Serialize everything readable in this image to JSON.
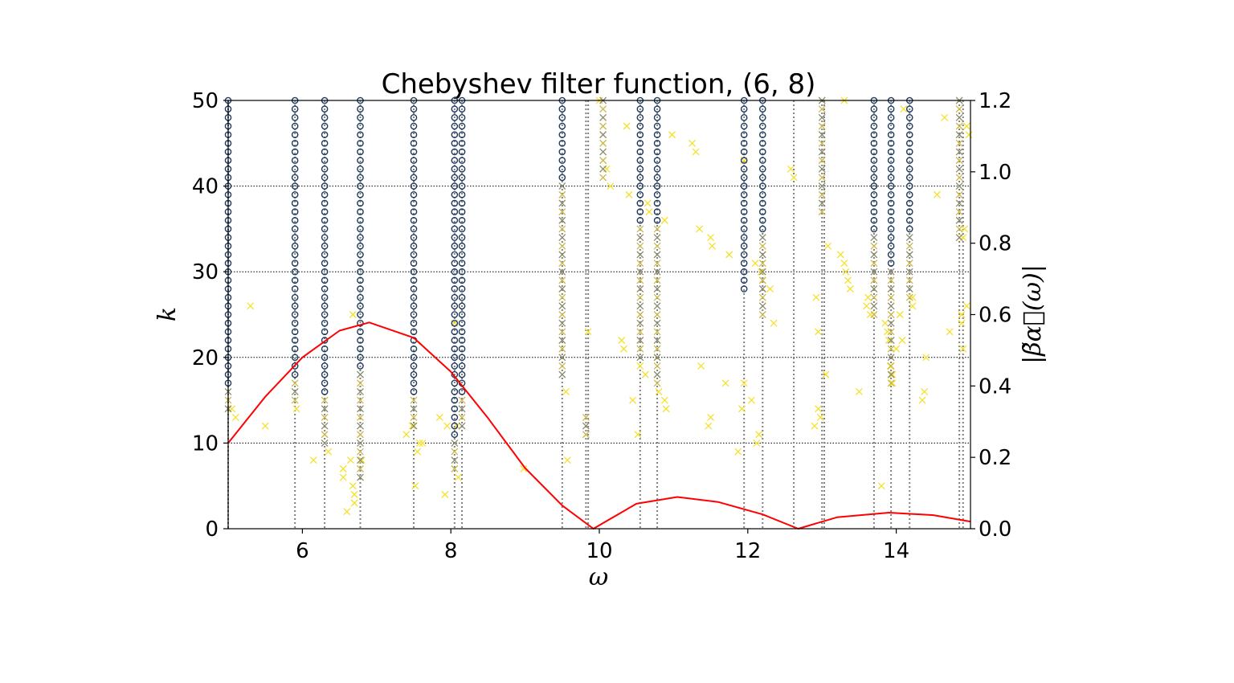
{
  "chart_data": {
    "type": "scatter",
    "title": "Chebyshev filter function, (6, 8)",
    "xlabel": "ω",
    "ylabel": "k",
    "ylabel_right": "|β̃α⃗(ω)|",
    "xlim": [
      5,
      15
    ],
    "ylim": [
      0,
      50
    ],
    "ylim_right": [
      0,
      1.2
    ],
    "xticks": [
      6,
      8,
      10,
      12,
      14
    ],
    "yticks": [
      0,
      10,
      20,
      30,
      40,
      50
    ],
    "yticks_right": [
      "0.0",
      "0.2",
      "0.4",
      "0.6",
      "0.8",
      "1.0",
      "1.2"
    ],
    "grid": "horizontal dotted",
    "colors": {
      "filter_curve": "#ff0000",
      "converged_circle": "#1f3a5f",
      "unconverged_cross": "#f5e12a",
      "eigen_line": "#7f7f7f"
    },
    "eigenvalues": [
      5.0,
      5.9,
      6.3,
      6.78,
      7.5,
      8.05,
      8.15,
      9.5,
      9.82,
      9.85,
      10.55,
      10.78,
      11.95,
      12.2,
      12.62,
      13.0,
      13.03,
      13.7,
      13.93,
      14.18,
      14.85,
      14.9
    ],
    "converged": [
      {
        "x": 5.0,
        "k_from": 17
      },
      {
        "x": 5.9,
        "k_from": 18
      },
      {
        "x": 6.3,
        "k_from": 16
      },
      {
        "x": 6.78,
        "k_from": 19
      },
      {
        "x": 7.5,
        "k_from": 16
      },
      {
        "x": 8.05,
        "k_from": 11
      },
      {
        "x": 8.15,
        "k_from": 16
      },
      {
        "x": 9.5,
        "k_from": 41
      },
      {
        "x": 10.55,
        "k_from": 36
      },
      {
        "x": 10.78,
        "k_from": 36
      },
      {
        "x": 11.95,
        "k_from": 28
      },
      {
        "x": 12.2,
        "k_from": 35
      },
      {
        "x": 13.93,
        "k_from": 31
      },
      {
        "x": 14.18,
        "k_from": 35
      },
      {
        "x": 13.7,
        "k_from": 35
      }
    ],
    "crosses_on_lines": [
      {
        "x": 5.0,
        "k_from": 14,
        "k_to": 16
      },
      {
        "x": 5.9,
        "k_from": 15,
        "k_to": 17
      },
      {
        "x": 6.3,
        "k_from": 10,
        "k_to": 15
      },
      {
        "x": 6.78,
        "k_from": 6,
        "k_to": 18
      },
      {
        "x": 7.5,
        "k_from": 12,
        "k_to": 15
      },
      {
        "x": 8.05,
        "k_from": 7,
        "k_to": 10
      },
      {
        "x": 8.15,
        "k_from": 12,
        "k_to": 15
      },
      {
        "x": 9.5,
        "k_from": 18,
        "k_to": 40
      },
      {
        "x": 9.82,
        "k_from": 11,
        "k_to": 13
      },
      {
        "x": 10.05,
        "k_from": 41,
        "k_to": 50
      },
      {
        "x": 10.55,
        "k_from": 20,
        "k_to": 35
      },
      {
        "x": 10.78,
        "k_from": 17,
        "k_to": 35
      },
      {
        "x": 12.2,
        "k_from": 25,
        "k_to": 34
      },
      {
        "x": 13.0,
        "k_from": 37,
        "k_to": 50
      },
      {
        "x": 13.7,
        "k_from": 25,
        "k_to": 34
      },
      {
        "x": 13.93,
        "k_from": 17,
        "k_to": 30
      },
      {
        "x": 14.18,
        "k_from": 27,
        "k_to": 34
      },
      {
        "x": 14.85,
        "k_from": 34,
        "k_to": 50
      }
    ],
    "scatter_crosses": [
      [
        5.05,
        14
      ],
      [
        5.1,
        13
      ],
      [
        5.3,
        26
      ],
      [
        5.5,
        12
      ],
      [
        5.92,
        14
      ],
      [
        6.15,
        8
      ],
      [
        6.35,
        9
      ],
      [
        6.55,
        7
      ],
      [
        6.55,
        6
      ],
      [
        6.6,
        2
      ],
      [
        6.65,
        8
      ],
      [
        6.68,
        25
      ],
      [
        6.68,
        5
      ],
      [
        6.7,
        4
      ],
      [
        6.7,
        3
      ],
      [
        6.8,
        8
      ],
      [
        7.4,
        11
      ],
      [
        7.48,
        12
      ],
      [
        7.52,
        5
      ],
      [
        7.55,
        9
      ],
      [
        7.58,
        10
      ],
      [
        7.62,
        10
      ],
      [
        7.85,
        13
      ],
      [
        7.92,
        4
      ],
      [
        7.95,
        12
      ],
      [
        8.05,
        24
      ],
      [
        8.08,
        12
      ],
      [
        8.1,
        6
      ],
      [
        8.98,
        7
      ],
      [
        9.55,
        16
      ],
      [
        9.57,
        8
      ],
      [
        9.85,
        23
      ],
      [
        10.0,
        50
      ],
      [
        10.05,
        45
      ],
      [
        10.1,
        42
      ],
      [
        10.15,
        40
      ],
      [
        10.3,
        22
      ],
      [
        10.33,
        21
      ],
      [
        10.37,
        47
      ],
      [
        10.4,
        39
      ],
      [
        10.45,
        15
      ],
      [
        10.52,
        11
      ],
      [
        10.55,
        19
      ],
      [
        10.62,
        18
      ],
      [
        10.65,
        38
      ],
      [
        10.67,
        37
      ],
      [
        10.78,
        20
      ],
      [
        10.8,
        16
      ],
      [
        10.88,
        36
      ],
      [
        10.88,
        15
      ],
      [
        10.9,
        14
      ],
      [
        10.98,
        46
      ],
      [
        11.25,
        45
      ],
      [
        11.3,
        44
      ],
      [
        11.35,
        35
      ],
      [
        11.37,
        19
      ],
      [
        11.47,
        12
      ],
      [
        11.5,
        13
      ],
      [
        11.5,
        34
      ],
      [
        11.52,
        33
      ],
      [
        11.7,
        17
      ],
      [
        11.75,
        32
      ],
      [
        11.87,
        9
      ],
      [
        11.92,
        14
      ],
      [
        11.95,
        43
      ],
      [
        11.95,
        17
      ],
      [
        12.05,
        15
      ],
      [
        12.1,
        31
      ],
      [
        12.12,
        10
      ],
      [
        12.15,
        11
      ],
      [
        12.18,
        30
      ],
      [
        12.2,
        29
      ],
      [
        12.3,
        28
      ],
      [
        12.35,
        24
      ],
      [
        12.58,
        42
      ],
      [
        12.62,
        41
      ],
      [
        12.9,
        12
      ],
      [
        12.92,
        27
      ],
      [
        12.95,
        23
      ],
      [
        12.95,
        14
      ],
      [
        12.98,
        13
      ],
      [
        13.05,
        18
      ],
      [
        13.08,
        33
      ],
      [
        13.25,
        32
      ],
      [
        13.3,
        50
      ],
      [
        13.3,
        31
      ],
      [
        13.32,
        30
      ],
      [
        13.35,
        29
      ],
      [
        13.38,
        28
      ],
      [
        13.5,
        16
      ],
      [
        13.6,
        26
      ],
      [
        13.62,
        27
      ],
      [
        13.65,
        25
      ],
      [
        13.8,
        5
      ],
      [
        13.85,
        24
      ],
      [
        13.88,
        23
      ],
      [
        13.9,
        22
      ],
      [
        13.92,
        19
      ],
      [
        13.95,
        18
      ],
      [
        13.95,
        17
      ],
      [
        14.0,
        21
      ],
      [
        14.05,
        25
      ],
      [
        14.08,
        22
      ],
      [
        14.1,
        49
      ],
      [
        14.22,
        26
      ],
      [
        14.22,
        27
      ],
      [
        14.35,
        15
      ],
      [
        14.38,
        16
      ],
      [
        14.4,
        20
      ],
      [
        14.55,
        39
      ],
      [
        14.65,
        48
      ],
      [
        14.72,
        23
      ],
      [
        14.88,
        24
      ],
      [
        14.9,
        21
      ],
      [
        14.92,
        35
      ],
      [
        14.95,
        26
      ],
      [
        14.95,
        47
      ],
      [
        14.98,
        46
      ],
      [
        14.9,
        34
      ],
      [
        14.88,
        25
      ]
    ],
    "filter_curve": {
      "x": [
        5.0,
        5.5,
        6.0,
        6.5,
        6.9,
        7.5,
        8.0,
        8.5,
        9.0,
        9.5,
        9.92,
        10.5,
        11.05,
        11.6,
        12.2,
        12.68,
        13.2,
        13.9,
        14.5,
        15.0
      ],
      "y": [
        0.24,
        0.37,
        0.48,
        0.555,
        0.578,
        0.535,
        0.44,
        0.31,
        0.17,
        0.065,
        0.0,
        0.07,
        0.089,
        0.075,
        0.04,
        0.0,
        0.032,
        0.045,
        0.038,
        0.02
      ]
    }
  }
}
